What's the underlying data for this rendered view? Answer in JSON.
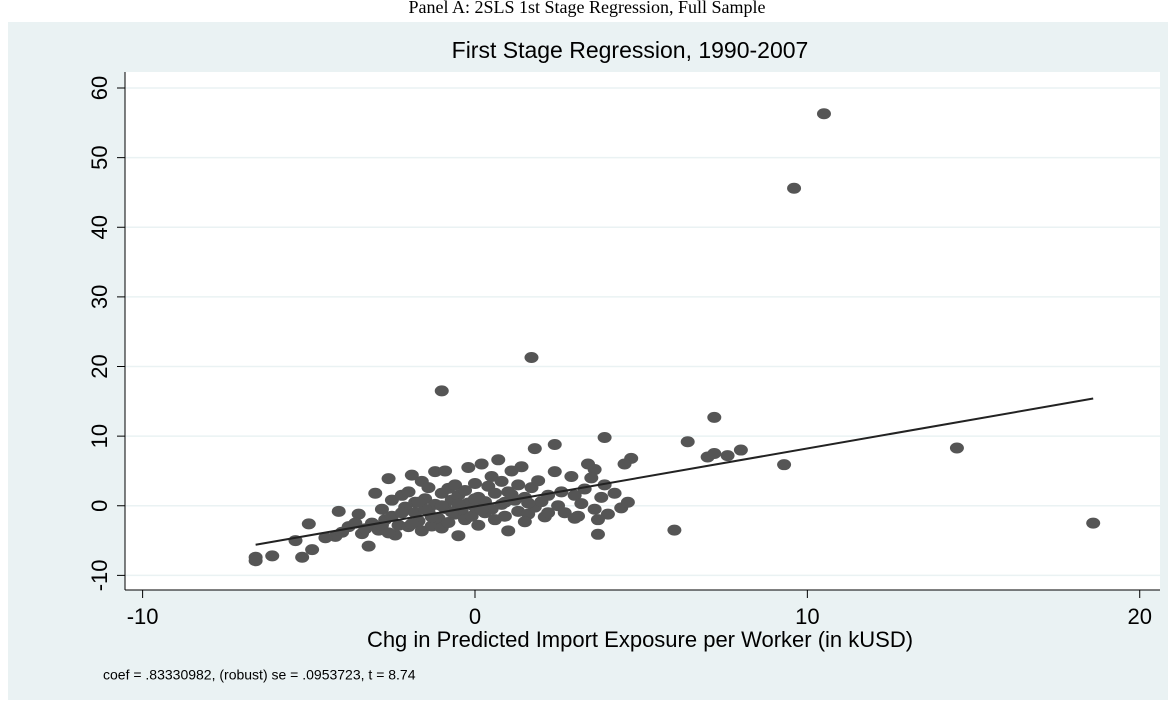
{
  "header": "Panel A: 2SLS 1st Stage Regression, Full Sample",
  "chart_data": {
    "type": "scatter",
    "title": "First Stage Regression, 1990-2007",
    "x_label": "Chg in Predicted Import Exposure per Worker (in kUSD)",
    "note": "coef = .83330982, (robust) se = .0953723, t = 8.74",
    "xlim": [
      -10.53,
      20.61
    ],
    "ylim": [
      -12.1,
      62.3
    ],
    "xticks": [
      -10,
      0,
      10,
      20
    ],
    "yticks": [
      -10,
      0,
      10,
      20,
      30,
      40,
      50,
      60
    ],
    "grid": true,
    "grid_color": "#eaf2f3",
    "background": "#eaf2f3",
    "points": {
      "color": "#555555",
      "x": [
        10.5,
        9.6,
        1.7,
        -1.0,
        7.2,
        14.5,
        18.6,
        9.3,
        6.0,
        6.4,
        8.0,
        7.0,
        7.2,
        7.6,
        3.9,
        2.4,
        1.8,
        4.7,
        4.5,
        3.6,
        3.4,
        3.7,
        -6.6,
        -6.6,
        -6.1,
        -5.2,
        -5.4,
        -4.9,
        -5.0,
        -4.1,
        -4.2,
        -3.8,
        -3.5,
        -3.4,
        -3.2,
        -3.1,
        -3.0,
        -2.9,
        -2.8,
        -2.7,
        -2.6,
        -2.5,
        -2.5,
        -2.4,
        -2.3,
        -2.2,
        -2.1,
        -2.0,
        -2.0,
        -1.9,
        -1.8,
        -1.8,
        -1.7,
        -1.6,
        -1.6,
        -1.5,
        -1.4,
        -1.4,
        -1.3,
        -1.2,
        -1.2,
        -1.1,
        -1.0,
        -1.0,
        -0.9,
        -0.9,
        -0.8,
        -0.8,
        -0.7,
        -0.6,
        -0.6,
        -0.5,
        -0.5,
        -0.4,
        -0.3,
        -0.3,
        -0.2,
        -0.2,
        -0.1,
        0.0,
        0.0,
        0.1,
        0.1,
        0.2,
        0.3,
        0.3,
        0.4,
        0.5,
        0.5,
        0.6,
        0.6,
        0.7,
        0.8,
        0.8,
        0.9,
        1.0,
        1.0,
        1.1,
        1.2,
        1.3,
        1.3,
        1.4,
        1.5,
        1.6,
        1.7,
        1.8,
        1.9,
        2.0,
        2.1,
        2.2,
        2.4,
        2.5,
        2.6,
        2.7,
        2.9,
        3.0,
        3.1,
        3.2,
        3.3,
        3.5,
        3.6,
        3.8,
        3.9,
        4.0,
        4.2,
        4.4,
        4.6,
        3.0,
        3.7,
        2.2,
        1.5,
        -2.2,
        -1.5,
        -1.0,
        -0.5,
        0.0,
        -1.7,
        -2.8,
        -3.6,
        -4.0,
        -4.5,
        -3.3,
        -2.6,
        -1.9,
        -1.3,
        -0.7,
        0.2,
        0.9,
        1.1,
        1.6
      ],
      "y": [
        56.3,
        45.6,
        21.3,
        16.5,
        12.7,
        8.3,
        -2.5,
        5.9,
        -3.5,
        9.2,
        8.0,
        7.0,
        7.5,
        7.2,
        9.8,
        8.8,
        8.2,
        6.8,
        6.0,
        5.2,
        6.0,
        -4.1,
        -7.4,
        -7.9,
        -7.2,
        -7.4,
        -5.0,
        -6.3,
        -2.6,
        -0.8,
        -4.4,
        -3.0,
        -1.2,
        -4.0,
        -5.8,
        -2.5,
        1.8,
        -3.5,
        -0.5,
        -2.0,
        3.9,
        -1.5,
        0.8,
        -4.2,
        -2.8,
        1.5,
        -0.2,
        -3.0,
        2.0,
        4.4,
        -1.0,
        0.5,
        -2.2,
        3.5,
        -3.6,
        1.0,
        -0.8,
        2.6,
        -2.9,
        0.2,
        4.9,
        -1.8,
        1.8,
        -3.2,
        5.0,
        -0.4,
        2.5,
        -2.4,
        0.8,
        -1.2,
        3.0,
        -4.3,
        1.5,
        -0.6,
        2.2,
        -2.0,
        5.5,
        0.4,
        -1.5,
        3.2,
        -0.2,
        1.2,
        -2.8,
        6.0,
        0.6,
        -1.0,
        2.8,
        -0.5,
        4.2,
        1.8,
        -2.0,
        6.6,
        0.2,
        3.5,
        -1.5,
        2.0,
        -3.6,
        5.0,
        0.8,
        -0.8,
        3.0,
        5.6,
        1.2,
        -1.2,
        2.6,
        -0.2,
        3.6,
        0.6,
        -1.6,
        1.5,
        4.9,
        0.0,
        2.0,
        -1.0,
        4.2,
        1.5,
        -1.5,
        0.3,
        2.4,
        4.0,
        -0.5,
        1.2,
        3.0,
        -1.2,
        1.8,
        -0.3,
        0.5,
        -1.8,
        -2.0,
        -1.0,
        -2.3,
        -1.0,
        -0.5,
        0.0,
        0.2,
        1.0,
        0.5,
        -2.8,
        -2.5,
        -3.8,
        -4.6,
        -3.3,
        -3.9,
        -2.6,
        -1.6,
        -0.9,
        -0.6,
        0.5,
        1.6,
        0.4
      ]
    },
    "fit_line": {
      "color": "#222222",
      "x": [
        -6.6,
        18.6
      ],
      "y": [
        -5.6,
        15.4
      ]
    }
  }
}
